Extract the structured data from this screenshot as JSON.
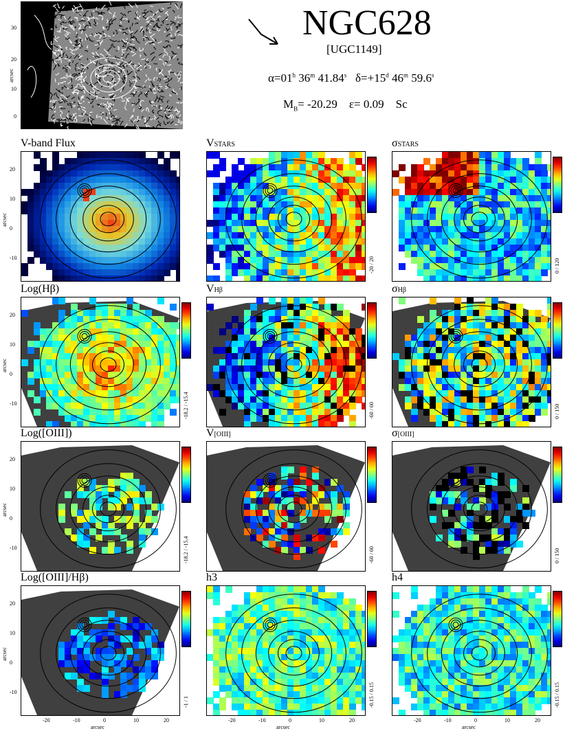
{
  "header": {
    "galaxy": "NGC628",
    "alt_name": "[UGC1149]",
    "alpha_h": "01",
    "alpha_m": "36",
    "alpha_s": "41.84",
    "delta_d": "+15",
    "delta_m": "46",
    "delta_s": "59.6",
    "mb": "-20.29",
    "eps": "0.09",
    "type": "Sc",
    "alpha_prefix": "α=",
    "delta_prefix": "δ=",
    "mb_prefix": "M",
    "mb_sub": "B",
    "eps_prefix": "ε="
  },
  "thumbnail": {
    "ticks_y": [
      "30",
      "20",
      "10",
      "0"
    ],
    "ylabel": "arcsec"
  },
  "axes": {
    "yticks": [
      "20",
      "10",
      "0",
      "-10"
    ],
    "xticks": [
      "-20",
      "-10",
      "0",
      "10",
      "20"
    ],
    "label": "arcsec"
  },
  "panels": [
    {
      "id": "vflux",
      "title": "V-band Flux",
      "sub": "",
      "range": "",
      "kind": "flux"
    },
    {
      "id": "vstars",
      "title": "V",
      "sub": "STARS",
      "range": "-20 / 20",
      "kind": "vel"
    },
    {
      "id": "sstars",
      "title": "σ",
      "sub": "STARS",
      "range": "0 / 120",
      "kind": "sig"
    },
    {
      "id": "loghb",
      "title": "Log(Hβ)",
      "sub": "",
      "range": "-18.2 / -15.4",
      "kind": "hb"
    },
    {
      "id": "vhb",
      "title": "V",
      "sub": "Hβ",
      "range": "-60 / 60",
      "kind": "gasvel"
    },
    {
      "id": "shb",
      "title": "σ",
      "sub": "Hβ",
      "range": "0 / 150",
      "kind": "gassig"
    },
    {
      "id": "logoiii",
      "title": "Log([OIII])",
      "sub": "",
      "range": "-18.2 / -15.4",
      "kind": "oiii"
    },
    {
      "id": "voiii",
      "title": "V",
      "sub": "[OIII]",
      "range": "-60 / 60",
      "kind": "oiiiv"
    },
    {
      "id": "soiii",
      "title": "σ",
      "sub": "[OIII]",
      "range": "0 / 150",
      "kind": "oiiis"
    },
    {
      "id": "ratio",
      "title": "Log([OIII]/Hβ)",
      "sub": "",
      "range": "-1 / 1",
      "kind": "ratio"
    },
    {
      "id": "h3",
      "title": "h3",
      "sub": "",
      "range": "-0.15 / 0.15",
      "kind": "h3"
    },
    {
      "id": "h4",
      "title": "h4",
      "sub": "",
      "range": "-0.15 / 0.15",
      "kind": "h4"
    }
  ],
  "colors": {
    "bg_gray": "#404040"
  }
}
